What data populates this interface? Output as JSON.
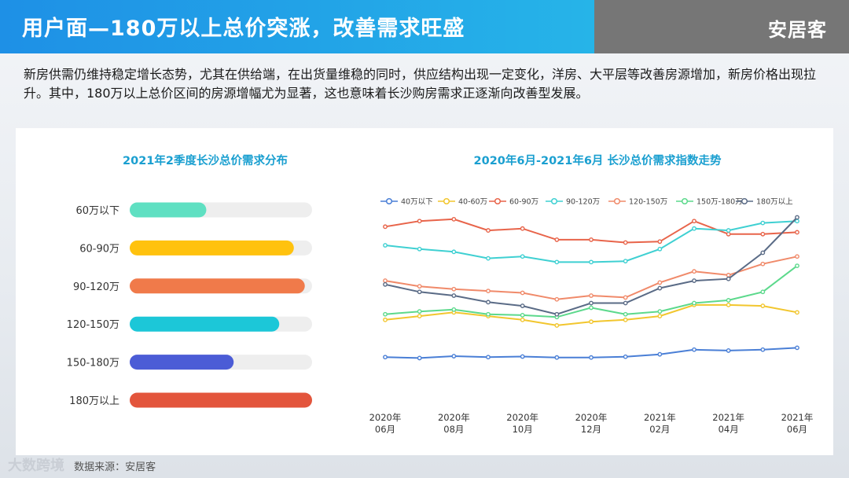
{
  "header": {
    "title": "用户面—180万以上总价突涨，改善需求旺盛",
    "brand": "安居客"
  },
  "intro": "新房供需仍维持稳定增长态势，尤其在供给端，在出货量维稳的同时，供应结构出现一定变化，洋房、大平层等改善房源增加，新房价格出现拉升。其中，180万以上总价区间的房源增幅尤为显著，这也意味着长沙购房需求正逐渐向改善型发展。",
  "footer": {
    "watermark": "大数跨境",
    "source": "数据来源：安居客"
  },
  "chart_data": [
    {
      "type": "bar",
      "orientation": "horizontal",
      "title": "2021年2季度长沙总价需求分布",
      "categories": [
        "60万以下",
        "60-90万",
        "90-120万",
        "120-150万",
        "150-180万",
        "180万以上"
      ],
      "values": [
        0.42,
        0.9,
        0.96,
        0.82,
        0.57,
        1.0
      ],
      "value_unit": "fraction of track length",
      "colors": [
        "#5fe0c2",
        "#ffc20e",
        "#f07a4a",
        "#1cc7d8",
        "#4b5cd6",
        "#e3553c"
      ],
      "track_color": "#eeeeee"
    },
    {
      "type": "line",
      "title": "2020年6月-2021年6月 长沙总价需求指数走势",
      "x": [
        "2020年06月",
        "2020年07月",
        "2020年08月",
        "2020年09月",
        "2020年10月",
        "2020年11月",
        "2020年12月",
        "2021年01月",
        "2021年02月",
        "2021年03月",
        "2021年04月",
        "2021年05月",
        "2021年06月"
      ],
      "xticks": [
        "2020年\n06月",
        "2020年\n08月",
        "2020年\n10月",
        "2020年\n12月",
        "2021年\n02月",
        "2021年\n04月",
        "2021年\n06月"
      ],
      "ylim": [
        0,
        100
      ],
      "grid": false,
      "legend": "top",
      "series": [
        {
          "name": "40万以下",
          "color": "#4a7fd6",
          "values": [
            21,
            20.5,
            21.5,
            21,
            21.3,
            20.8,
            20.8,
            21.2,
            22.5,
            25,
            24.5,
            25,
            26
          ]
        },
        {
          "name": "40-60万",
          "color": "#f2c62e",
          "values": [
            41,
            43,
            45,
            43,
            41,
            38,
            40,
            41,
            43,
            49,
            49,
            48.5,
            45
          ]
        },
        {
          "name": "60-90万",
          "color": "#e8644a",
          "values": [
            91,
            94,
            95,
            89,
            90,
            84,
            84,
            82.5,
            83,
            94,
            87,
            87,
            88
          ]
        },
        {
          "name": "90-120万",
          "color": "#3fd0d2",
          "values": [
            81,
            79,
            77.5,
            74,
            75,
            72,
            72,
            72.5,
            79,
            90,
            89,
            93,
            94
          ]
        },
        {
          "name": "120-150万",
          "color": "#f08a6a",
          "values": [
            62,
            59,
            57.5,
            56.5,
            55.5,
            52,
            54,
            53,
            61,
            67,
            65,
            71,
            75
          ]
        },
        {
          "name": "150万-180万",
          "color": "#5cd98c",
          "values": [
            44,
            45.5,
            46.5,
            44,
            43.5,
            42.5,
            47.5,
            44,
            45.5,
            50,
            51.5,
            56,
            70
          ]
        },
        {
          "name": "180万以上",
          "color": "#5a6b86",
          "values": [
            60,
            56,
            54,
            50.5,
            48.5,
            44,
            50,
            50,
            58,
            62,
            63,
            77,
            96
          ]
        }
      ]
    }
  ]
}
